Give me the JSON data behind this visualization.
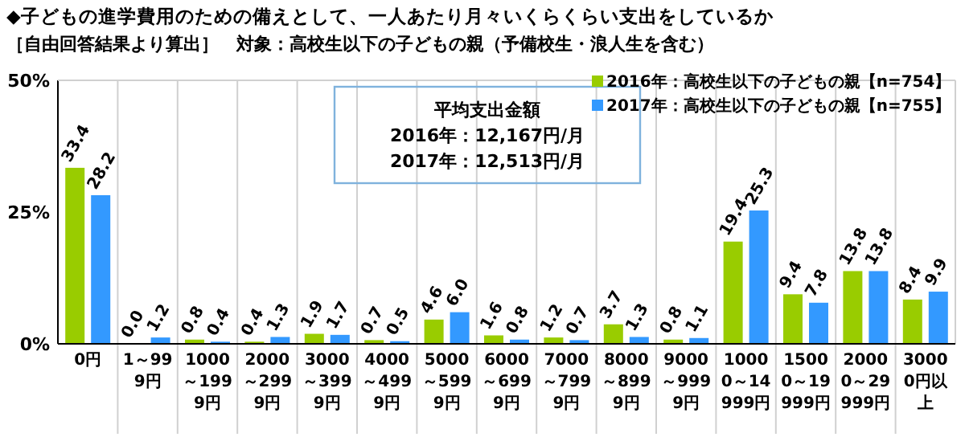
{
  "chart_data": {
    "type": "bar",
    "title": "◆子どもの進学費用のための備えとして、一人あたり月々いくらくらい支出をしているか",
    "subtitle": "［自由回答結果より算出］　対象：高校生以下の子どもの親（予備校生・浪人生を含む）",
    "categories": [
      "0円",
      "1～999円",
      "1000～1999円",
      "2000～2999円",
      "3000～3999円",
      "4000～4999円",
      "5000～5999円",
      "6000～6999円",
      "7000～7999円",
      "8000～8999円",
      "9000～9999円",
      "10000～14999円",
      "15000～19999円",
      "20000～29999円",
      "30000円以上"
    ],
    "series": [
      {
        "name": "2016年：高校生以下の子どもの親【n=754】",
        "color": "#99cc00",
        "values": [
          33.4,
          0,
          0.8,
          0.4,
          1.9,
          0.7,
          4.6,
          1.6,
          1.2,
          3.7,
          0.8,
          19.4,
          9.4,
          13.8,
          8.4
        ],
        "value_labels": [
          "33.4",
          "0.0",
          "0.8",
          "0.4",
          "1.9",
          "0.7",
          "4.6",
          "1.6",
          "1.2",
          "3.7",
          "0.8",
          "19.4",
          "9.4",
          "13.8",
          "8.4"
        ]
      },
      {
        "name": "2017年：高校生以下の子どもの親【n=755】",
        "color": "#3399ff",
        "values": [
          28.2,
          1.2,
          0.4,
          1.3,
          1.7,
          0.5,
          6,
          0.8,
          0.7,
          1.3,
          1.1,
          25.3,
          7.8,
          13.8,
          9.9
        ],
        "value_labels": [
          "28.2",
          "1.2",
          "0.4",
          "1.3",
          "1.7",
          "0.5",
          "6.0",
          "0.8",
          "0.7",
          "1.3",
          "1.1",
          "25.3",
          "7.8",
          "13.8",
          "9.9"
        ]
      }
    ],
    "ylim": [
      0,
      50
    ],
    "yticks": [
      {
        "value": 0,
        "label": "0%"
      },
      {
        "value": 25,
        "label": "25%"
      },
      {
        "value": 50,
        "label": "50%"
      }
    ],
    "legend": "top right",
    "annotations": [
      "平均支出金額",
      "2016年：12,167円/月",
      "2017年：12,513円/月"
    ]
  }
}
